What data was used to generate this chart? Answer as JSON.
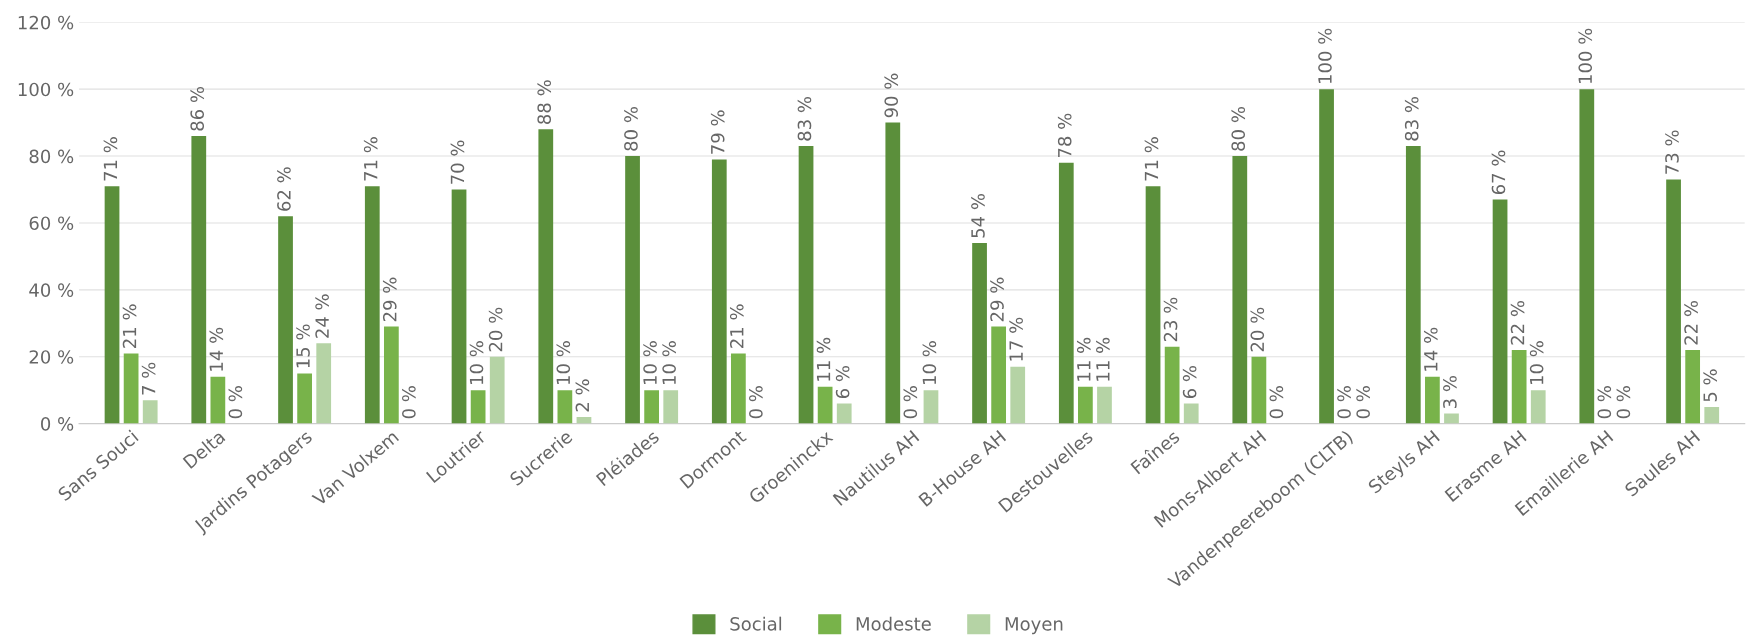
{
  "chart_data": {
    "type": "bar",
    "categories": [
      "Sans Souci",
      "Delta",
      "Jardins Potagers",
      "Van Volxem",
      "Loutrier",
      "Sucrerie",
      "Pléiades",
      "Dormont",
      "Groeninckx",
      "Nautilus AH",
      "B-House AH",
      "Destouvelles",
      "Faînes",
      "Mons-Albert AH",
      "Vandenpeereboom (CLTB)",
      "Steyls AH",
      "Erasme AH",
      "Emaillerie AH",
      "Saules AH"
    ],
    "series": [
      {
        "name": "Social",
        "color": "#5b8f3b",
        "values": [
          71,
          86,
          62,
          71,
          70,
          88,
          80,
          79,
          83,
          90,
          54,
          78,
          71,
          80,
          100,
          83,
          67,
          100,
          73
        ],
        "value_labels": [
          "71 %",
          "86 %",
          "62 %",
          "71 %",
          "70 %",
          "88 %",
          "80 %",
          "79 %",
          "83 %",
          "90 %",
          "54 %",
          "78 %",
          "71 %",
          "80 %",
          "100 %",
          "83 %",
          "67 %",
          "100 %",
          "73 %"
        ]
      },
      {
        "name": "Modeste",
        "color": "#78b34a",
        "values": [
          21,
          14,
          15,
          29,
          10,
          10,
          10,
          21,
          11,
          0,
          29,
          11,
          23,
          20,
          0,
          14,
          22,
          0,
          22
        ],
        "value_labels": [
          "21 %",
          "14 %",
          "15 %",
          "29 %",
          "10 %",
          "10 %",
          "10 %",
          "21 %",
          "11 %",
          "0 %",
          "29 %",
          "11 %",
          "23 %",
          "20 %",
          "0 %",
          "14 %",
          "22 %",
          "0 %",
          "22 %"
        ]
      },
      {
        "name": "Moyen",
        "color": "#b5d3a5",
        "values": [
          7,
          0,
          24,
          0,
          20,
          2,
          10,
          0,
          6,
          10,
          17,
          11,
          6,
          0,
          0,
          3,
          10,
          0,
          5
        ],
        "value_labels": [
          "7 %",
          "0 %",
          "24 %",
          "0 %",
          "20 %",
          "2 %",
          "10 %",
          "0 %",
          "6 %",
          "10 %",
          "17 %",
          "11 %",
          "6 %",
          "0 %",
          "0 %",
          "3 %",
          "10 %",
          "0 %",
          "5 %"
        ]
      }
    ],
    "ylim": [
      0,
      120
    ],
    "yticks": [
      {
        "value": 0,
        "label": "0 %"
      },
      {
        "value": 20,
        "label": "20 %"
      },
      {
        "value": 40,
        "label": "40 %"
      },
      {
        "value": 60,
        "label": "60 %"
      },
      {
        "value": 80,
        "label": "80 %"
      },
      {
        "value": 100,
        "label": "100 %"
      },
      {
        "value": 120,
        "label": "120 %"
      }
    ],
    "grid": "y",
    "legend": "bottom"
  }
}
